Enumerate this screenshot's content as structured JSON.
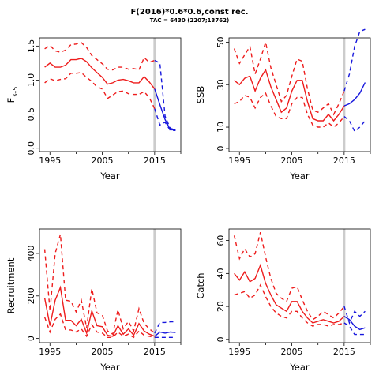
{
  "figure": {
    "title": "F(2016)*0.6*0.6,const rec.",
    "subtitle": "TAC = 6430 (2207;13762)"
  },
  "colors": {
    "historic": "#ee1c1c",
    "forecast": "#1616dd",
    "marker": "#cccccc"
  },
  "chart_data": [
    {
      "type": "line",
      "xlabel": "Year",
      "ylabel": "F̅ 3–5",
      "ylabel_main": "F̅",
      "ylabel_sub": "3–5",
      "xlim": [
        1993,
        2020
      ],
      "ylim": [
        -0.05,
        1.62
      ],
      "xticks": [
        1995,
        2005,
        2015
      ],
      "yticks": [
        0.0,
        0.5,
        1.0,
        1.5
      ],
      "ytick_labels": [
        "0.0",
        "0.5",
        "1.0",
        "1.5"
      ],
      "marker_year": 2015,
      "x": [
        1994,
        1995,
        1996,
        1997,
        1998,
        1999,
        2000,
        2001,
        2002,
        2003,
        2004,
        2005,
        2006,
        2007,
        2008,
        2009,
        2010,
        2011,
        2012,
        2013,
        2014,
        2015
      ],
      "series": [
        {
          "role": "median",
          "values": [
            1.19,
            1.25,
            1.19,
            1.19,
            1.22,
            1.3,
            1.3,
            1.32,
            1.27,
            1.18,
            1.11,
            1.04,
            0.94,
            0.96,
            1.0,
            1.01,
            0.99,
            0.96,
            0.96,
            1.05,
            0.97,
            0.87
          ]
        },
        {
          "role": "lower",
          "values": [
            0.96,
            1.02,
            0.99,
            1.01,
            1.02,
            1.1,
            1.1,
            1.11,
            1.04,
            0.98,
            0.9,
            0.87,
            0.73,
            0.78,
            0.83,
            0.84,
            0.8,
            0.79,
            0.79,
            0.83,
            0.74,
            0.58
          ]
        },
        {
          "role": "upper",
          "values": [
            1.46,
            1.51,
            1.43,
            1.41,
            1.44,
            1.52,
            1.53,
            1.55,
            1.48,
            1.36,
            1.3,
            1.24,
            1.16,
            1.15,
            1.19,
            1.19,
            1.16,
            1.17,
            1.15,
            1.33,
            1.26,
            1.29
          ]
        }
      ],
      "forecast_x": [
        2015,
        2016,
        2017,
        2018,
        2019
      ],
      "forecast": [
        {
          "role": "median",
          "values": [
            0.87,
            0.64,
            0.42,
            0.27,
            0.27
          ]
        },
        {
          "role": "lower",
          "values": [
            0.58,
            0.34,
            0.38,
            0.26,
            0.26
          ]
        },
        {
          "role": "upper",
          "values": [
            1.29,
            1.25,
            0.47,
            0.29,
            0.27
          ]
        }
      ]
    },
    {
      "type": "line",
      "xlabel": "Year",
      "ylabel": "SSB",
      "xlim": [
        1993,
        2020
      ],
      "ylim": [
        -1.5,
        52
      ],
      "xticks": [
        1995,
        2005,
        2015
      ],
      "yticks": [
        0,
        10,
        30,
        50
      ],
      "ytick_labels": [
        "0",
        "10",
        "30",
        "50"
      ],
      "marker_year": 2015,
      "x": [
        1994,
        1995,
        1996,
        1997,
        1998,
        1999,
        2000,
        2001,
        2002,
        2003,
        2004,
        2005,
        2006,
        2007,
        2008,
        2009,
        2010,
        2011,
        2012,
        2013,
        2014,
        2015
      ],
      "series": [
        {
          "role": "median",
          "values": [
            32,
            30,
            33,
            34,
            27,
            33,
            37,
            29,
            23,
            17,
            19,
            27,
            32,
            32,
            22,
            14,
            13,
            13,
            16,
            13,
            16,
            20
          ]
        },
        {
          "role": "lower",
          "values": [
            21,
            22,
            25,
            24,
            19,
            24,
            26,
            20,
            15,
            14,
            14,
            21,
            24,
            24,
            16,
            11,
            10,
            10,
            12,
            10,
            12,
            15
          ]
        },
        {
          "role": "upper",
          "values": [
            47,
            40,
            44,
            48,
            35,
            42,
            50,
            38,
            30,
            22,
            25,
            34,
            42,
            41,
            28,
            18,
            17,
            19,
            21,
            16,
            21,
            27
          ]
        }
      ],
      "forecast_x": [
        2015,
        2016,
        2017,
        2018,
        2019
      ],
      "forecast": [
        {
          "role": "median",
          "values": [
            20,
            21,
            23,
            26,
            31
          ]
        },
        {
          "role": "lower",
          "values": [
            15,
            13,
            8,
            10,
            13
          ]
        },
        {
          "role": "upper",
          "values": [
            27,
            35,
            48,
            55,
            56
          ]
        }
      ]
    },
    {
      "type": "line",
      "xlabel": "Year",
      "ylabel": "Recruitment",
      "xlim": [
        1993,
        2020
      ],
      "ylim": [
        -20,
        515
      ],
      "xticks": [
        1995,
        2005,
        2015
      ],
      "yticks": [
        0,
        200,
        400
      ],
      "ytick_labels": [
        "0",
        "200",
        "400"
      ],
      "marker_year": 2015,
      "x": [
        1994,
        1995,
        1996,
        1997,
        1998,
        1999,
        2000,
        2001,
        2002,
        2003,
        2004,
        2005,
        2006,
        2007,
        2008,
        2009,
        2010,
        2011,
        2012,
        2013,
        2014,
        2015
      ],
      "series": [
        {
          "role": "median",
          "values": [
            190,
            60,
            180,
            240,
            85,
            85,
            60,
            90,
            25,
            130,
            60,
            55,
            15,
            10,
            60,
            20,
            45,
            15,
            70,
            35,
            20,
            10
          ]
        },
        {
          "role": "lower",
          "values": [
            100,
            30,
            90,
            115,
            40,
            40,
            30,
            45,
            10,
            65,
            30,
            25,
            5,
            5,
            30,
            10,
            20,
            5,
            35,
            15,
            10,
            5
          ]
        },
        {
          "role": "upper",
          "values": [
            420,
            130,
            400,
            490,
            180,
            175,
            125,
            180,
            50,
            235,
            120,
            110,
            35,
            20,
            135,
            45,
            80,
            35,
            140,
            70,
            45,
            25
          ]
        }
      ],
      "forecast_x": [
        2015,
        2016,
        2017,
        2018,
        2019
      ],
      "forecast": [
        {
          "role": "median",
          "values": [
            10,
            30,
            25,
            30,
            28
          ]
        },
        {
          "role": "lower",
          "values": [
            5,
            5,
            5,
            5,
            5
          ]
        },
        {
          "role": "upper",
          "values": [
            25,
            75,
            75,
            78,
            78
          ]
        }
      ]
    },
    {
      "type": "line",
      "xlabel": "Year",
      "ylabel": "Catch",
      "xlim": [
        1993,
        2020
      ],
      "ylim": [
        -2,
        67
      ],
      "xticks": [
        1995,
        2005,
        2015
      ],
      "yticks": [
        0,
        20,
        40,
        60
      ],
      "ytick_labels": [
        "0",
        "20",
        "40",
        "60"
      ],
      "marker_year": 2015,
      "x": [
        1994,
        1995,
        1996,
        1997,
        1998,
        1999,
        2000,
        2001,
        2002,
        2003,
        2004,
        2005,
        2006,
        2007,
        2008,
        2009,
        2010,
        2011,
        2012,
        2013,
        2014,
        2015
      ],
      "series": [
        {
          "role": "median",
          "values": [
            40,
            36,
            41,
            35,
            37,
            45,
            34,
            27,
            21,
            19,
            17,
            23,
            23,
            17,
            13,
            10,
            11,
            12,
            11,
            10,
            11,
            14
          ]
        },
        {
          "role": "lower",
          "values": [
            27,
            28,
            29,
            25,
            27,
            33,
            26,
            20,
            16,
            14,
            13,
            17,
            17,
            13,
            10,
            8,
            9,
            9,
            8,
            9,
            9,
            10
          ]
        },
        {
          "role": "upper",
          "values": [
            63,
            49,
            55,
            50,
            52,
            65,
            50,
            37,
            28,
            25,
            23,
            31,
            32,
            24,
            17,
            12,
            14,
            17,
            15,
            13,
            16,
            20
          ]
        }
      ],
      "forecast_x": [
        2015,
        2016,
        2017,
        2018,
        2019
      ],
      "forecast": [
        {
          "role": "median",
          "values": [
            14,
            12,
            8,
            6,
            7
          ]
        },
        {
          "role": "lower",
          "values": [
            10,
            8,
            3,
            3,
            3
          ]
        },
        {
          "role": "upper",
          "values": [
            20,
            10,
            17,
            14,
            17
          ]
        }
      ]
    }
  ]
}
